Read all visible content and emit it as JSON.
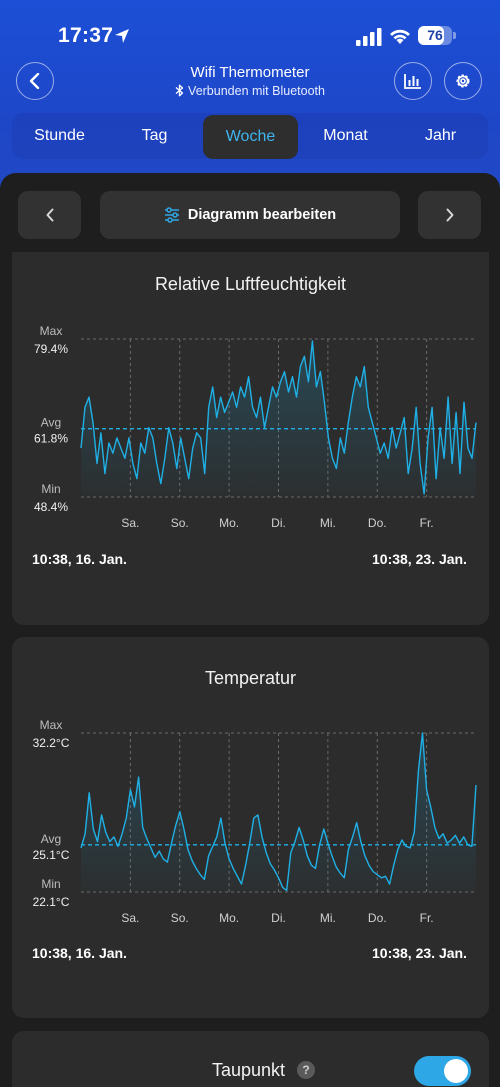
{
  "status_bar": {
    "time": "17:37",
    "battery": "76",
    "battery_level": 0.76
  },
  "nav": {
    "title": "Wifi Thermometer",
    "subtitle": "Verbunden mit Bluetooth"
  },
  "tabs": [
    {
      "label": "Stunde",
      "active": false
    },
    {
      "label": "Tag",
      "active": false
    },
    {
      "label": "Woche",
      "active": true
    },
    {
      "label": "Monat",
      "active": false
    },
    {
      "label": "Jahr",
      "active": false
    }
  ],
  "controls": {
    "edit_label": "Diagramm bearbeiten"
  },
  "colors": {
    "accent": "#2ea7e6",
    "line": "#1fb0e6",
    "header_blue": "#1c4fd6",
    "card_bg": "#2c2c2c"
  },
  "chart_data": [
    {
      "type": "line",
      "title": "Relative Luftfeuchtigkeit",
      "labels": {
        "max": "Max",
        "max_value": "79.4%",
        "avg": "Avg",
        "avg_value": "61.8%",
        "min": "Min",
        "min_value": "48.4%"
      },
      "ylim": [
        48.4,
        79.4
      ],
      "avg": 61.8,
      "x_ticks": [
        "Sa.",
        "So.",
        "Mo.",
        "Di.",
        "Mi.",
        "Do.",
        "Fr."
      ],
      "range_start": "10:38,  16. Jan.",
      "range_end": "10:38,  23. Jan.",
      "values": [
        58,
        66,
        68,
        63,
        55,
        61,
        53,
        59,
        57,
        60,
        58,
        56,
        60,
        55,
        52,
        59,
        57,
        62,
        60,
        55,
        51,
        56,
        62,
        59,
        54,
        60,
        56,
        52,
        58,
        61,
        60,
        53,
        66,
        70,
        64,
        68,
        65,
        67,
        69,
        66,
        70,
        68,
        72,
        66,
        64,
        68,
        62,
        66,
        70,
        68,
        71,
        73,
        69,
        72,
        68,
        74,
        76,
        71,
        79,
        70,
        73,
        67,
        60,
        56,
        54,
        60,
        57,
        63,
        68,
        72,
        70,
        74,
        66,
        63,
        60,
        57,
        59,
        56,
        62,
        58,
        61,
        64,
        53,
        58,
        66,
        55,
        49,
        60,
        66,
        52,
        62,
        56,
        68,
        55,
        65,
        53,
        67,
        58,
        56,
        63
      ]
    },
    {
      "type": "line",
      "title": "Temperatur",
      "labels": {
        "max": "Max",
        "max_value": "32.2°C",
        "avg": "Avg",
        "avg_value": "25.1°C",
        "min": "Min",
        "min_value": "22.1°C"
      },
      "ylim": [
        22.1,
        32.2
      ],
      "avg": 25.1,
      "x_ticks": [
        "Sa.",
        "So.",
        "Mo.",
        "Di.",
        "Mi.",
        "Do.",
        "Fr."
      ],
      "range_start": "10:38,  16. Jan.",
      "range_end": "10:38,  23. Jan.",
      "values": [
        24.9,
        25.8,
        28.4,
        26.1,
        25.3,
        27.0,
        25.9,
        25.3,
        25.6,
        25.0,
        25.8,
        26.8,
        28.6,
        27.5,
        29.4,
        26.2,
        25.5,
        24.9,
        24.3,
        24.7,
        24.2,
        24.0,
        25.2,
        26.3,
        27.2,
        26.1,
        24.8,
        24.1,
        23.6,
        23.2,
        22.9,
        24.4,
        25.0,
        25.6,
        26.8,
        25.2,
        24.2,
        23.6,
        23.1,
        22.6,
        23.8,
        25.2,
        26.8,
        27.0,
        25.6,
        24.6,
        23.9,
        23.5,
        23.0,
        22.4,
        22.2,
        24.6,
        25.3,
        26.2,
        25.4,
        24.4,
        23.8,
        23.6,
        25.1,
        26.1,
        25.2,
        24.4,
        23.7,
        23.3,
        23.0,
        24.8,
        25.6,
        26.5,
        25.3,
        24.4,
        23.8,
        23.4,
        23.2,
        23.0,
        23.1,
        22.6,
        23.8,
        24.8,
        25.4,
        25.0,
        24.9,
        25.9,
        29.8,
        32.2,
        28.6,
        27.5,
        26.2,
        25.5,
        25.8,
        25.2,
        25.4,
        25.7,
        25.2,
        25.6,
        25.1,
        25.0,
        28.9
      ]
    }
  ],
  "taupunkt": {
    "title": "Taupunkt",
    "help": "?",
    "enabled": true
  }
}
